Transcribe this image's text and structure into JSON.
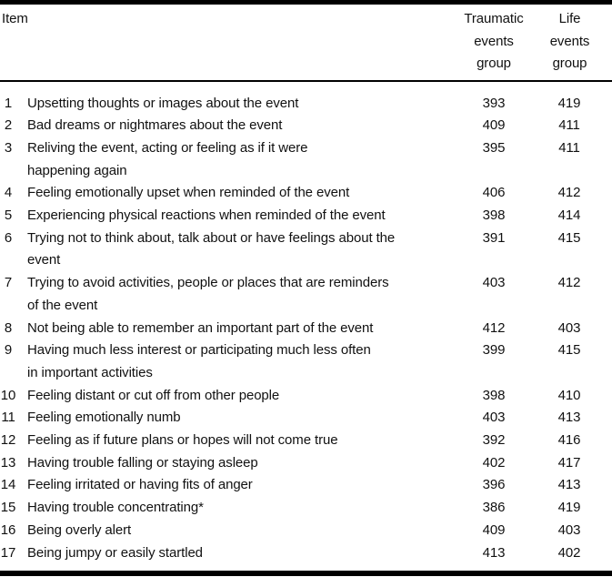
{
  "colors": {
    "background": "#ffffff",
    "text": "#111111",
    "rule": "#000000"
  },
  "table": {
    "columns": {
      "item": "Item",
      "traumatic": "Traumatic events group",
      "life": "Life events group"
    },
    "rows": [
      {
        "num": "1",
        "text": "Upsetting thoughts or images about the event",
        "text2": "",
        "traumatic": "393",
        "life": "419"
      },
      {
        "num": "2",
        "text": "Bad dreams or nightmares about the event",
        "text2": "",
        "traumatic": "409",
        "life": "411"
      },
      {
        "num": "3",
        "text": "Reliving the event, acting or feeling as if it were",
        "text2": "happening again",
        "traumatic": "395",
        "life": "411"
      },
      {
        "num": "4",
        "text": "Feeling emotionally upset when reminded of the event",
        "text2": "",
        "traumatic": "406",
        "life": "412"
      },
      {
        "num": "5",
        "text": "Experiencing physical reactions when reminded of the event",
        "text2": "",
        "traumatic": "398",
        "life": "414"
      },
      {
        "num": "6",
        "text": "Trying not to think about, talk about or have feelings about the",
        "text2": "event",
        "traumatic": "391",
        "life": "415"
      },
      {
        "num": "7",
        "text": "Trying to avoid activities, people or places that are reminders",
        "text2": "of the event",
        "traumatic": "403",
        "life": "412"
      },
      {
        "num": "8",
        "text": "Not being able to remember an important part of the event",
        "text2": "",
        "traumatic": "412",
        "life": "403"
      },
      {
        "num": "9",
        "text": "Having much less interest or participating much less often",
        "text2": "in important activities",
        "traumatic": "399",
        "life": "415"
      },
      {
        "num": "10",
        "text": "Feeling distant or cut off from other people",
        "text2": "",
        "traumatic": "398",
        "life": "410"
      },
      {
        "num": "11",
        "text": "Feeling emotionally numb",
        "text2": "",
        "traumatic": "403",
        "life": "413"
      },
      {
        "num": "12",
        "text": "Feeling as if future plans or hopes will not come true",
        "text2": "",
        "traumatic": "392",
        "life": "416"
      },
      {
        "num": "13",
        "text": "Having trouble falling or staying asleep",
        "text2": "",
        "traumatic": "402",
        "life": "417"
      },
      {
        "num": "14",
        "text": "Feeling irritated or having fits of anger",
        "text2": "",
        "traumatic": "396",
        "life": "413"
      },
      {
        "num": "15",
        "text": "Having trouble concentrating*",
        "text2": "",
        "traumatic": "386",
        "life": "419"
      },
      {
        "num": "16",
        "text": "Being overly alert",
        "text2": "",
        "traumatic": "409",
        "life": "403"
      },
      {
        "num": "17",
        "text": "Being jumpy or easily startled",
        "text2": "",
        "traumatic": "413",
        "life": "402"
      }
    ]
  }
}
